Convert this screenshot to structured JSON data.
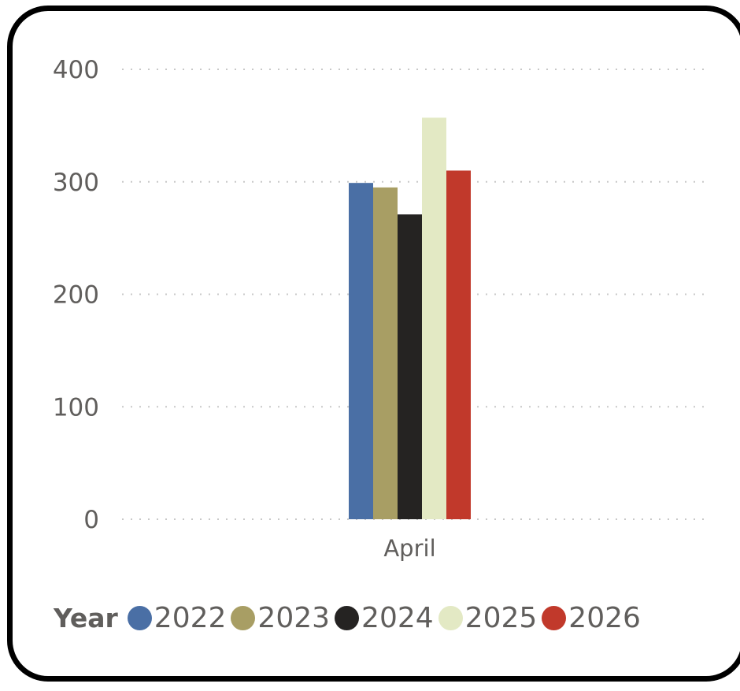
{
  "chart_data": {
    "type": "bar",
    "categories": [
      "April"
    ],
    "series": [
      {
        "name": "2022",
        "values": [
          299
        ],
        "color": "#4a6fa5"
      },
      {
        "name": "2023",
        "values": [
          295
        ],
        "color": "#a89e64"
      },
      {
        "name": "2024",
        "values": [
          271
        ],
        "color": "#252322"
      },
      {
        "name": "2025",
        "values": [
          357
        ],
        "color": "#e3e9c4"
      },
      {
        "name": "2026",
        "values": [
          310
        ],
        "color": "#c1392b"
      }
    ],
    "ylim": [
      0,
      400
    ],
    "yticks": [
      "0",
      "100",
      "200",
      "300",
      "400"
    ],
    "title": "",
    "xlabel": "",
    "ylabel": "",
    "grid": "dotted horizontal",
    "legend": {
      "title": "Year",
      "position": "bottom-left"
    }
  }
}
